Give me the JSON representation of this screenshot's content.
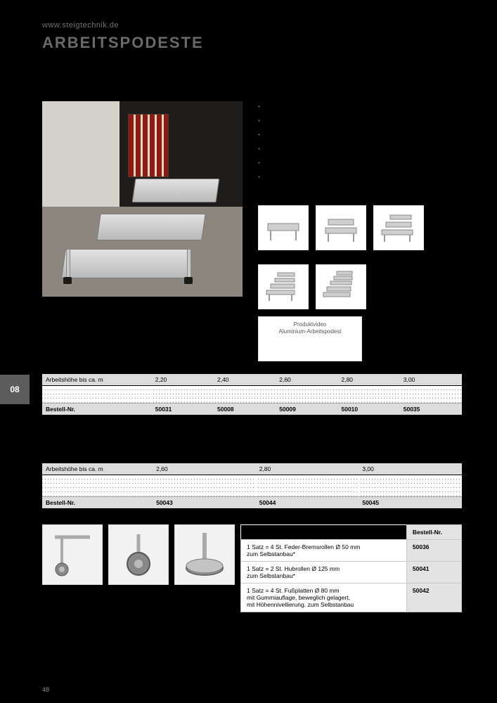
{
  "header": {
    "url": "www.steigtechnik.de",
    "title": "ARBEITSPODESTE"
  },
  "side_tab": "08",
  "bullets": [
    "",
    "",
    "",
    "",
    "",
    ""
  ],
  "video_box": {
    "line1": "Produktvideo",
    "line2": "Aluminium-Arbeitspodest"
  },
  "table1": {
    "columns": [
      "2,20",
      "2,40",
      "2,60",
      "2,80",
      "3,00"
    ],
    "rows": [
      {
        "label": "Arbeitshöhe bis ca. m",
        "values": [
          "2,20",
          "2,40",
          "2,60",
          "2,80",
          "3,00"
        ],
        "style": "thead"
      },
      {
        "label": "",
        "values": [
          "",
          "",
          "",
          "",
          ""
        ],
        "style": "dot"
      },
      {
        "label": "",
        "values": [
          "",
          "",
          "",
          "",
          ""
        ],
        "style": "dot"
      },
      {
        "label": "",
        "values": [
          "",
          "",
          "",
          "",
          ""
        ],
        "style": "dot"
      },
      {
        "label": "",
        "values": [
          "",
          "",
          "",
          "",
          ""
        ],
        "style": "dot"
      },
      {
        "label": "Bestell-Nr.",
        "values": [
          "50031",
          "50008",
          "50009",
          "50010",
          "50035"
        ],
        "style": "order"
      }
    ]
  },
  "table2": {
    "rows": [
      {
        "label": "Arbeitshöhe bis ca. m",
        "values": [
          "2,60",
          "2,80",
          "3,00"
        ],
        "style": "thead"
      },
      {
        "label": "",
        "values": [
          "",
          "",
          ""
        ],
        "style": "dot"
      },
      {
        "label": "",
        "values": [
          "",
          "",
          ""
        ],
        "style": "dot"
      },
      {
        "label": "",
        "values": [
          "",
          "",
          ""
        ],
        "style": "dot"
      },
      {
        "label": "",
        "values": [
          "",
          "",
          ""
        ],
        "style": "dot"
      },
      {
        "label": "",
        "values": [
          "",
          "",
          ""
        ],
        "style": "dot"
      },
      {
        "label": "Bestell-Nr.",
        "values": [
          "50043",
          "50044",
          "50045"
        ],
        "style": "order"
      }
    ]
  },
  "accessories": {
    "header": "Bestell-Nr.",
    "rows": [
      {
        "desc": "1 Satz = 4 St. Feder-Bremsrollen Ø 50 mm\nzum Selbstanbau*",
        "nr": "50036"
      },
      {
        "desc": "1 Satz = 2 St. Hubrollen Ø 125 mm\nzum Selbstanbau*",
        "nr": "50041"
      },
      {
        "desc": "1 Satz = 4 St. Fußplatten Ø 80 mm\nmit Gummiauflage, beweglich gelagert,\nmit Höhennivellierung, zum Selbstanbau",
        "nr": "50042"
      }
    ]
  },
  "page_number": "48",
  "colors": {
    "bg": "#000000",
    "title_gray": "#6a6a6a",
    "tab_gray": "#5d5d5d"
  }
}
